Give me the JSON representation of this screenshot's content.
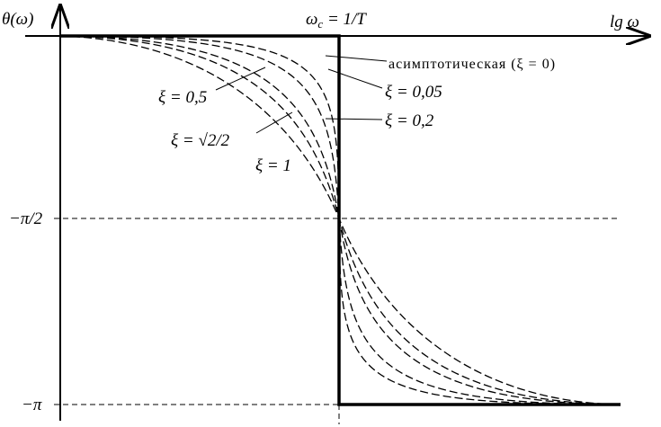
{
  "axes": {
    "y_label": "θ(ω)",
    "x_label": "lg ω"
  },
  "center_label": {
    "symbol": "ω",
    "subscript": "c",
    "rest": " = 1/T"
  },
  "ticks": {
    "minus_half_pi": "−π/2",
    "minus_pi": "−π"
  },
  "curve_labels": {
    "asymptotic": "асимптотическая (ξ = 0)",
    "xi_005": "ξ = 0,05",
    "xi_02": "ξ = 0,2",
    "xi_05": "ξ = 0,5",
    "xi_sqrt2": "ξ = √2/2",
    "xi_1": "ξ = 1"
  }
}
